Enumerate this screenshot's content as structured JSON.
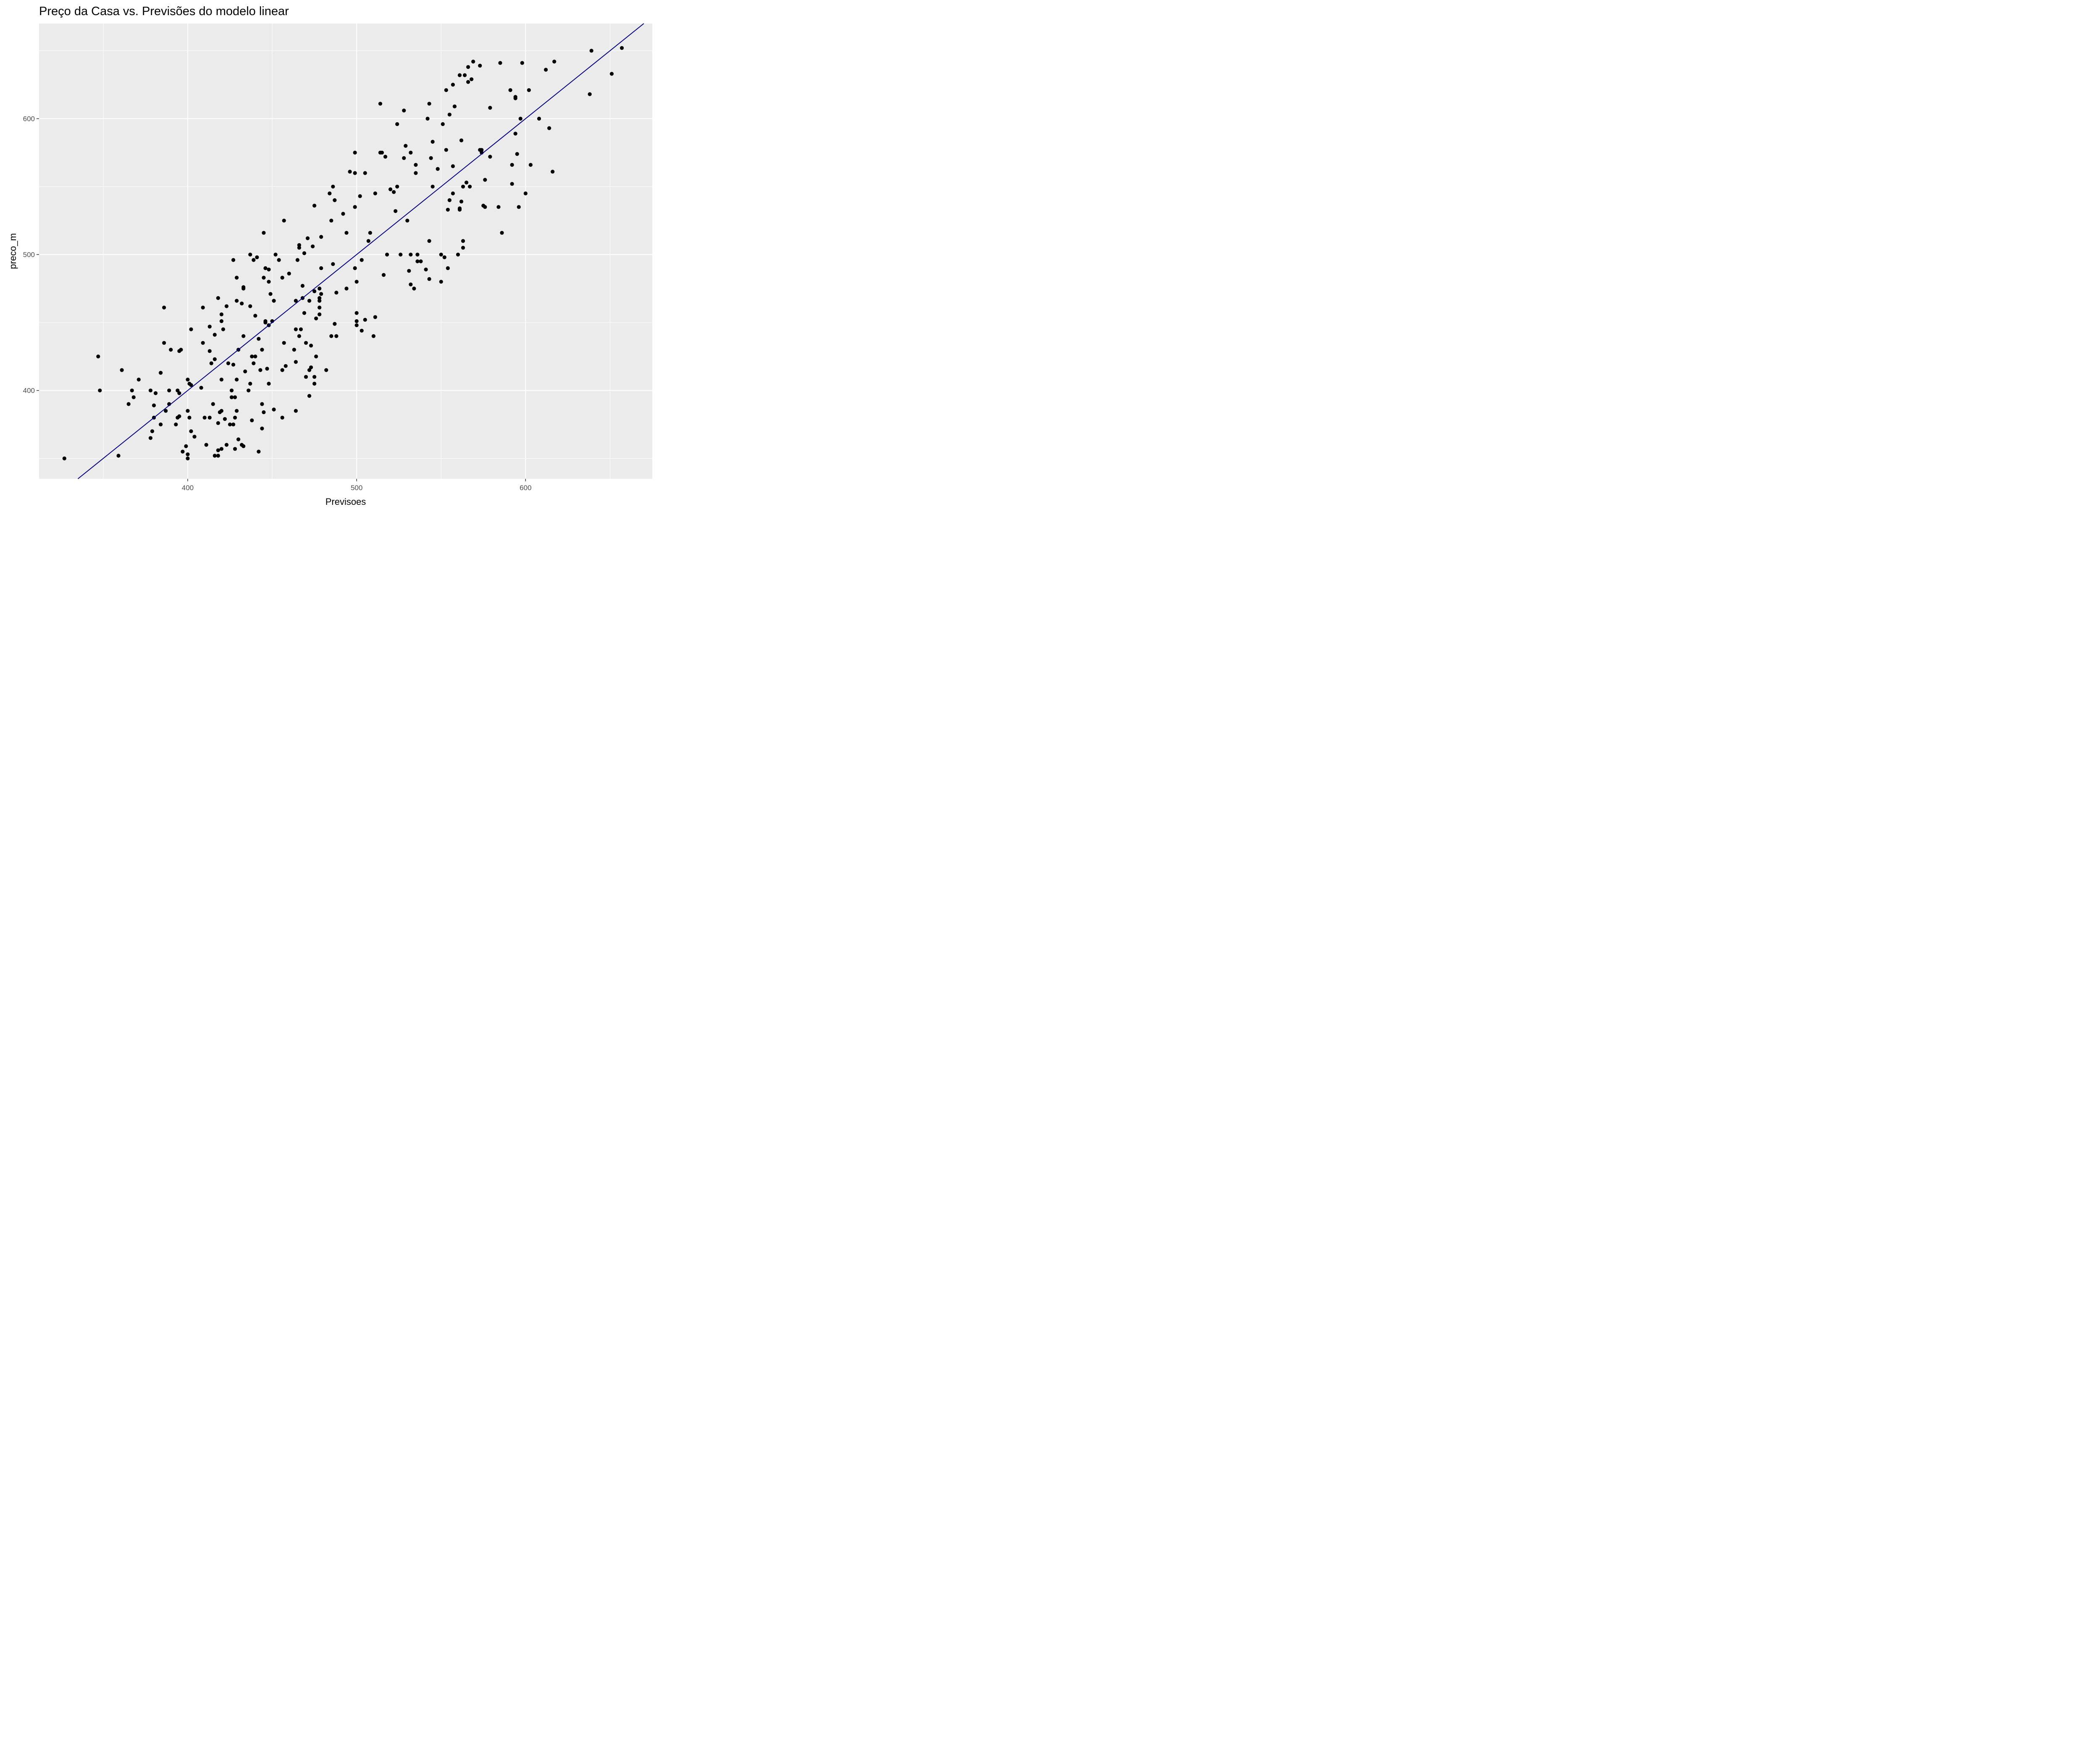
{
  "chart_data": {
    "type": "scatter",
    "title": "Preço da Casa vs. Previsões do modelo linear",
    "xlabel": "Previsoes",
    "ylabel": "preco_m",
    "xlim": [
      312,
      675
    ],
    "ylim": [
      335,
      670
    ],
    "x_ticks": [
      400,
      500,
      600
    ],
    "y_ticks": [
      400,
      500,
      600
    ],
    "grid": true,
    "legend": "none",
    "colors": {
      "panel": "#ebebeb",
      "grid": "#ffffff",
      "points": "#000000",
      "line": "#000080"
    },
    "reference_line": {
      "slope": 1,
      "intercept": 0
    },
    "points": [
      [
        327,
        350
      ],
      [
        347,
        425
      ],
      [
        348,
        400
      ],
      [
        359,
        352
      ],
      [
        361,
        415
      ],
      [
        365,
        390
      ],
      [
        367,
        400
      ],
      [
        368,
        395
      ],
      [
        371,
        408
      ],
      [
        378,
        365
      ],
      [
        378,
        400
      ],
      [
        379,
        370
      ],
      [
        380,
        389
      ],
      [
        380,
        380
      ],
      [
        381,
        398
      ],
      [
        384,
        375
      ],
      [
        384,
        413
      ],
      [
        386,
        461
      ],
      [
        386,
        435
      ],
      [
        387,
        385
      ],
      [
        389,
        390
      ],
      [
        389,
        400
      ],
      [
        390,
        430
      ],
      [
        393,
        375
      ],
      [
        394,
        380
      ],
      [
        394,
        400
      ],
      [
        395,
        429
      ],
      [
        395,
        398
      ],
      [
        395,
        381
      ],
      [
        396,
        430
      ],
      [
        397,
        355
      ],
      [
        399,
        359
      ],
      [
        400,
        350
      ],
      [
        400,
        353
      ],
      [
        400,
        408
      ],
      [
        400,
        385
      ],
      [
        401,
        405
      ],
      [
        401,
        380
      ],
      [
        402,
        404
      ],
      [
        402,
        370
      ],
      [
        402,
        445
      ],
      [
        404,
        366
      ],
      [
        408,
        402
      ],
      [
        409,
        435
      ],
      [
        409,
        461
      ],
      [
        410,
        380
      ],
      [
        411,
        360
      ],
      [
        413,
        429
      ],
      [
        413,
        447
      ],
      [
        413,
        380
      ],
      [
        414,
        420
      ],
      [
        415,
        390
      ],
      [
        416,
        352
      ],
      [
        416,
        441
      ],
      [
        416,
        423
      ],
      [
        418,
        468
      ],
      [
        418,
        352
      ],
      [
        418,
        356
      ],
      [
        418,
        376
      ],
      [
        419,
        384
      ],
      [
        420,
        456
      ],
      [
        420,
        385
      ],
      [
        420,
        408
      ],
      [
        420,
        357
      ],
      [
        420,
        451
      ],
      [
        421,
        445
      ],
      [
        422,
        379
      ],
      [
        423,
        462
      ],
      [
        423,
        360
      ],
      [
        424,
        420
      ],
      [
        425,
        375
      ],
      [
        426,
        395
      ],
      [
        426,
        400
      ],
      [
        427,
        375
      ],
      [
        427,
        496
      ],
      [
        427,
        419
      ],
      [
        428,
        357
      ],
      [
        428,
        380
      ],
      [
        428,
        395
      ],
      [
        429,
        385
      ],
      [
        429,
        408
      ],
      [
        429,
        483
      ],
      [
        429,
        466
      ],
      [
        430,
        364
      ],
      [
        430,
        430
      ],
      [
        432,
        464
      ],
      [
        432,
        360
      ],
      [
        433,
        359
      ],
      [
        433,
        476
      ],
      [
        433,
        440
      ],
      [
        433,
        475
      ],
      [
        434,
        414
      ],
      [
        436,
        400
      ],
      [
        437,
        405
      ],
      [
        437,
        462
      ],
      [
        437,
        500
      ],
      [
        438,
        378
      ],
      [
        438,
        425
      ],
      [
        439,
        420
      ],
      [
        439,
        496
      ],
      [
        440,
        455
      ],
      [
        440,
        425
      ],
      [
        441,
        498
      ],
      [
        442,
        355
      ],
      [
        442,
        438
      ],
      [
        443,
        415
      ],
      [
        444,
        372
      ],
      [
        444,
        390
      ],
      [
        444,
        430
      ],
      [
        445,
        384
      ],
      [
        445,
        483
      ],
      [
        445,
        516
      ],
      [
        446,
        451
      ],
      [
        446,
        490
      ],
      [
        446,
        450
      ],
      [
        447,
        416
      ],
      [
        448,
        405
      ],
      [
        448,
        480
      ],
      [
        448,
        448
      ],
      [
        448,
        489
      ],
      [
        449,
        471
      ],
      [
        450,
        451
      ],
      [
        451,
        466
      ],
      [
        451,
        386
      ],
      [
        452,
        500
      ],
      [
        454,
        496
      ],
      [
        456,
        415
      ],
      [
        456,
        380
      ],
      [
        456,
        483
      ],
      [
        457,
        435
      ],
      [
        457,
        525
      ],
      [
        458,
        418
      ],
      [
        460,
        486
      ],
      [
        463,
        430
      ],
      [
        464,
        385
      ],
      [
        464,
        421
      ],
      [
        464,
        445
      ],
      [
        464,
        466
      ],
      [
        465,
        496
      ],
      [
        466,
        440
      ],
      [
        466,
        507
      ],
      [
        466,
        505
      ],
      [
        467,
        445
      ],
      [
        468,
        477
      ],
      [
        468,
        468
      ],
      [
        469,
        457
      ],
      [
        469,
        501
      ],
      [
        470,
        410
      ],
      [
        470,
        435
      ],
      [
        471,
        512
      ],
      [
        472,
        396
      ],
      [
        472,
        466
      ],
      [
        472,
        415
      ],
      [
        473,
        417
      ],
      [
        473,
        433
      ],
      [
        474,
        506
      ],
      [
        475,
        536
      ],
      [
        475,
        473
      ],
      [
        475,
        405
      ],
      [
        475,
        410
      ],
      [
        476,
        425
      ],
      [
        476,
        453
      ],
      [
        478,
        468
      ],
      [
        478,
        456
      ],
      [
        478,
        461
      ],
      [
        478,
        466
      ],
      [
        478,
        475
      ],
      [
        479,
        513
      ],
      [
        479,
        490
      ],
      [
        479,
        471
      ],
      [
        482,
        415
      ],
      [
        484,
        545
      ],
      [
        485,
        525
      ],
      [
        485,
        440
      ],
      [
        486,
        550
      ],
      [
        486,
        493
      ],
      [
        487,
        540
      ],
      [
        487,
        449
      ],
      [
        488,
        472
      ],
      [
        488,
        440
      ],
      [
        492,
        530
      ],
      [
        494,
        475
      ],
      [
        494,
        516
      ],
      [
        496,
        561
      ],
      [
        499,
        535
      ],
      [
        499,
        575
      ],
      [
        499,
        560
      ],
      [
        499,
        490
      ],
      [
        500,
        451
      ],
      [
        500,
        457
      ],
      [
        500,
        448
      ],
      [
        500,
        480
      ],
      [
        502,
        543
      ],
      [
        503,
        444
      ],
      [
        503,
        496
      ],
      [
        505,
        452
      ],
      [
        505,
        560
      ],
      [
        507,
        510
      ],
      [
        508,
        516
      ],
      [
        510,
        440
      ],
      [
        511,
        545
      ],
      [
        511,
        454
      ],
      [
        514,
        611
      ],
      [
        514,
        575
      ],
      [
        515,
        575
      ],
      [
        516,
        485
      ],
      [
        517,
        572
      ],
      [
        518,
        500
      ],
      [
        520,
        548
      ],
      [
        522,
        546
      ],
      [
        523,
        532
      ],
      [
        524,
        596
      ],
      [
        524,
        550
      ],
      [
        526,
        500
      ],
      [
        528,
        571
      ],
      [
        528,
        606
      ],
      [
        529,
        580
      ],
      [
        530,
        525
      ],
      [
        531,
        488
      ],
      [
        532,
        478
      ],
      [
        532,
        575
      ],
      [
        532,
        500
      ],
      [
        534,
        475
      ],
      [
        535,
        566
      ],
      [
        535,
        560
      ],
      [
        536,
        495
      ],
      [
        536,
        500
      ],
      [
        538,
        495
      ],
      [
        541,
        489
      ],
      [
        542,
        600
      ],
      [
        543,
        611
      ],
      [
        543,
        510
      ],
      [
        543,
        482
      ],
      [
        544,
        571
      ],
      [
        545,
        583
      ],
      [
        545,
        550
      ],
      [
        548,
        563
      ],
      [
        550,
        480
      ],
      [
        550,
        500
      ],
      [
        551,
        596
      ],
      [
        552,
        498
      ],
      [
        553,
        577
      ],
      [
        553,
        621
      ],
      [
        554,
        490
      ],
      [
        554,
        533
      ],
      [
        555,
        603
      ],
      [
        555,
        540
      ],
      [
        557,
        625
      ],
      [
        557,
        545
      ],
      [
        557,
        565
      ],
      [
        558,
        609
      ],
      [
        560,
        500
      ],
      [
        561,
        533
      ],
      [
        561,
        632
      ],
      [
        561,
        534
      ],
      [
        562,
        584
      ],
      [
        562,
        539
      ],
      [
        563,
        550
      ],
      [
        563,
        505
      ],
      [
        563,
        510
      ],
      [
        564,
        632
      ],
      [
        565,
        553
      ],
      [
        566,
        638
      ],
      [
        566,
        627
      ],
      [
        567,
        550
      ],
      [
        568,
        629
      ],
      [
        569,
        642
      ],
      [
        573,
        639
      ],
      [
        573,
        577
      ],
      [
        574,
        577
      ],
      [
        574,
        575
      ],
      [
        575,
        536
      ],
      [
        576,
        535
      ],
      [
        576,
        555
      ],
      [
        579,
        572
      ],
      [
        579,
        608
      ],
      [
        584,
        535
      ],
      [
        585,
        641
      ],
      [
        586,
        516
      ],
      [
        591,
        621
      ],
      [
        592,
        552
      ],
      [
        592,
        566
      ],
      [
        594,
        615
      ],
      [
        594,
        589
      ],
      [
        594,
        616
      ],
      [
        595,
        574
      ],
      [
        596,
        535
      ],
      [
        597,
        600
      ],
      [
        598,
        641
      ],
      [
        600,
        545
      ],
      [
        602,
        621
      ],
      [
        603,
        566
      ],
      [
        608,
        600
      ],
      [
        612,
        636
      ],
      [
        614,
        593
      ],
      [
        616,
        561
      ],
      [
        617,
        642
      ],
      [
        638,
        618
      ],
      [
        639,
        650
      ],
      [
        651,
        633
      ],
      [
        657,
        652
      ]
    ]
  }
}
